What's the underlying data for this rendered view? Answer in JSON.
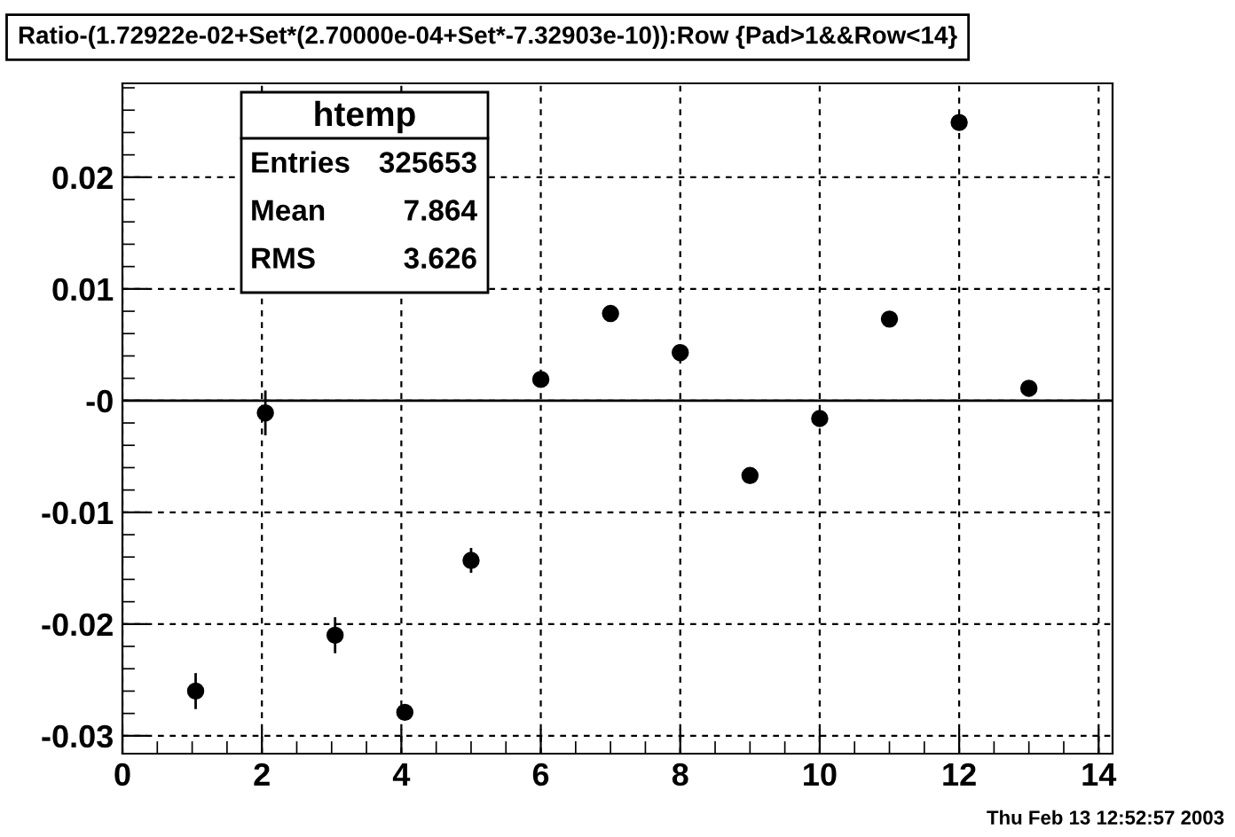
{
  "chart_data": {
    "type": "scatter",
    "title": "Ratio-(1.72922e-02+Set*(2.70000e-04+Set*-7.32903e-10)):Row {Pad>1&&Row<14}",
    "x": [
      1.05,
      2.05,
      3.05,
      4.05,
      5.0,
      6.0,
      7.0,
      8.0,
      9.0,
      10.0,
      11.0,
      12.0,
      13.0
    ],
    "values": [
      -0.026,
      -0.0011,
      -0.021,
      -0.0279,
      -0.0143,
      0.0019,
      0.0078,
      0.0043,
      -0.0067,
      -0.0016,
      0.0073,
      0.0249,
      0.0011
    ],
    "errors": [
      0.0015,
      0.0019,
      0.0015,
      0.0005,
      0.001,
      null,
      null,
      null,
      null,
      null,
      null,
      null,
      null
    ],
    "color": "#000000",
    "marker": "circle",
    "xlim": [
      0,
      14.2
    ],
    "xticks": [
      0,
      2,
      4,
      6,
      8,
      10,
      12,
      14
    ],
    "ylim": [
      -0.0316,
      0.0284
    ],
    "yticks": [
      -0.03,
      -0.02,
      -0.01,
      {
        "value": 0,
        "label": "-0"
      },
      0.01,
      0.02
    ],
    "grid": true,
    "ref_lines": [
      {
        "axis": "y",
        "value": 0,
        "color": "#000000",
        "line_style": "solid"
      }
    ],
    "annotations": [
      "htemp",
      "Entries",
      "325653",
      "Mean",
      "7.864",
      "RMS",
      "3.626",
      "Thu Feb 13 12:52:57 2003"
    ]
  }
}
